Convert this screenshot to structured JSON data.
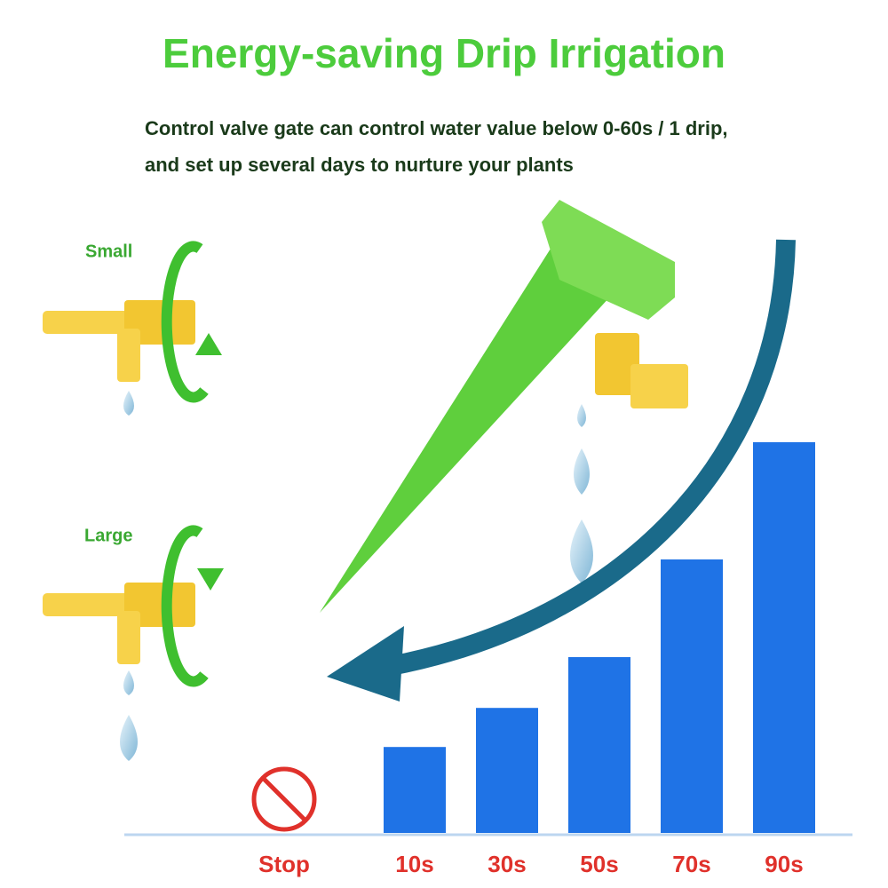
{
  "chart_data": {
    "type": "bar",
    "title": "Energy-saving Drip Irrigation",
    "subtitle": [
      "Control valve gate can control water value below 0-60s / 1 drip,",
      "and set up several days to nurture your plants"
    ],
    "annotations": [
      "Small",
      "Large"
    ],
    "categories": [
      "Stop",
      "10s",
      "30s",
      "50s",
      "70s",
      "90s"
    ],
    "values": [
      0,
      22,
      32,
      45,
      70,
      100
    ],
    "color": "#1f73e6",
    "label_color": "#e0312b",
    "ylim": [
      0,
      100
    ]
  }
}
